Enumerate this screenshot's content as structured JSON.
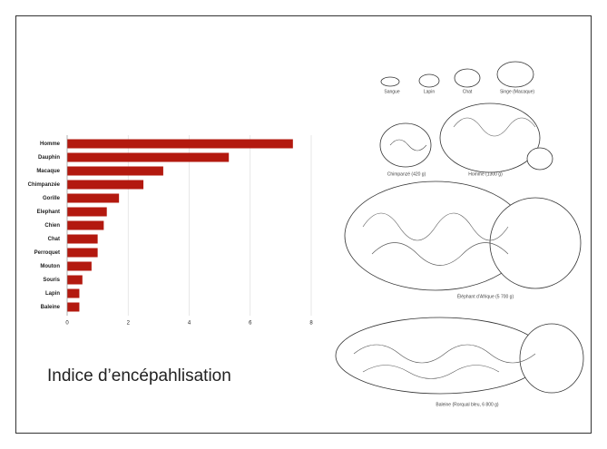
{
  "chart_data": {
    "type": "bar",
    "orientation": "horizontal",
    "title": "Indice d’encépahlisation",
    "categories": [
      "Homme",
      "Dauphin",
      "Macaque",
      "Chimpanzée",
      "Gorille",
      "Elephant",
      "Chien",
      "Chat",
      "Perroquet",
      "Mouton",
      "Souris",
      "Lapin",
      "Baleine"
    ],
    "values": [
      7.4,
      5.3,
      3.15,
      2.5,
      1.7,
      1.3,
      1.2,
      1.0,
      1.0,
      0.8,
      0.5,
      0.4,
      0.4
    ],
    "color": "#b3190f",
    "xlim": [
      0,
      8
    ],
    "xticks": [
      0,
      2,
      4,
      6,
      8
    ],
    "grid": true
  },
  "illustration": {
    "captions": [
      "Sangue",
      "Lapin",
      "Chat",
      "Singe (Macaque)",
      "Chimpanzé (420 g)",
      "Homme (1300 g)",
      "Éléphant d’Afrique (5 700 g)",
      "Baleine (Rorqual bleu, 6 800 g)"
    ]
  }
}
